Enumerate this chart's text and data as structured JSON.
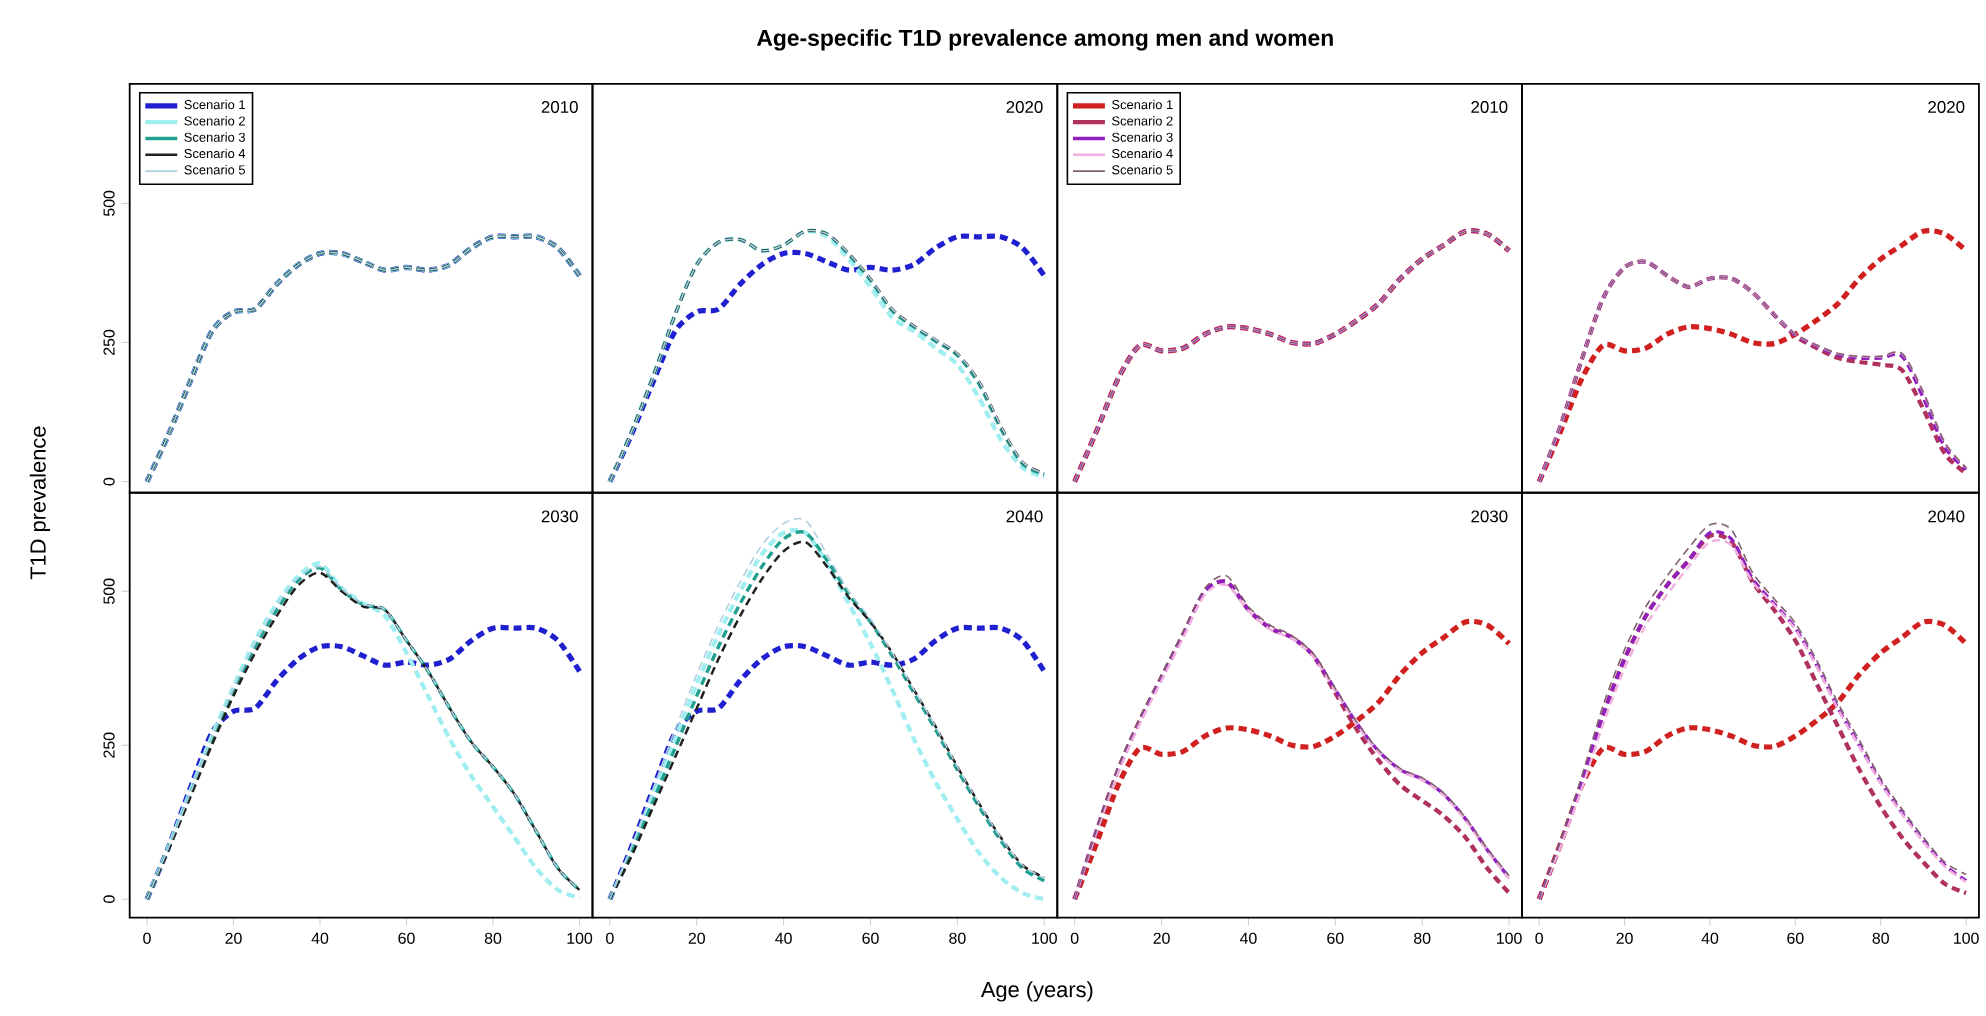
{
  "chart_data": [
    {
      "type": "line",
      "ylabel": "T1D prevalence",
      "annotations": [
        "2010"
      ],
      "legend": "top left",
      "line_style": "dashed",
      "tick_labels": "y",
      "x": [
        0,
        5,
        10,
        15,
        20,
        25,
        30,
        35,
        40,
        45,
        50,
        55,
        60,
        65,
        70,
        75,
        80,
        85,
        90,
        95,
        100
      ],
      "xlim": [
        -4,
        103
      ],
      "ylim": [
        -20,
        715
      ],
      "xticks": [
        0,
        20,
        40,
        60,
        80,
        100
      ],
      "yticks": [
        0,
        250,
        500
      ],
      "series": [
        {
          "name": "Scenario 1",
          "color": "#2020d0",
          "values": [
            0,
            85,
            180,
            270,
            305,
            310,
            355,
            390,
            410,
            410,
            395,
            380,
            385,
            380,
            390,
            420,
            440,
            440,
            440,
            420,
            370
          ]
        },
        {
          "name": "Scenario 2",
          "color": "#a0eef0",
          "values": [
            0,
            85,
            180,
            270,
            305,
            310,
            355,
            390,
            410,
            410,
            395,
            380,
            385,
            380,
            390,
            420,
            440,
            440,
            440,
            420,
            370
          ]
        },
        {
          "name": "Scenario 3",
          "color": "#20a090",
          "values": [
            0,
            85,
            180,
            270,
            305,
            310,
            355,
            390,
            410,
            410,
            395,
            380,
            385,
            380,
            390,
            420,
            440,
            440,
            440,
            420,
            370
          ]
        },
        {
          "name": "Scenario 4",
          "color": "#202020",
          "values": [
            0,
            85,
            180,
            270,
            305,
            310,
            355,
            390,
            410,
            410,
            395,
            380,
            385,
            380,
            390,
            420,
            440,
            440,
            440,
            420,
            370
          ]
        },
        {
          "name": "Scenario 5",
          "color": "#b0d0e0",
          "values": [
            0,
            85,
            180,
            270,
            305,
            310,
            355,
            390,
            410,
            410,
            395,
            380,
            385,
            380,
            390,
            420,
            440,
            440,
            440,
            420,
            370
          ]
        }
      ]
    },
    {
      "type": "line",
      "title": "Age-specific T1D prevalence among men and women",
      "annotations": [
        "2020"
      ],
      "line_style": "dashed",
      "tick_labels": false,
      "x": [
        0,
        5,
        10,
        15,
        20,
        25,
        30,
        35,
        40,
        45,
        50,
        55,
        60,
        65,
        70,
        75,
        80,
        85,
        90,
        95,
        100
      ],
      "xlim": [
        -4,
        103
      ],
      "ylim": [
        -20,
        715
      ],
      "xticks": [
        0,
        20,
        40,
        60,
        80,
        100
      ],
      "yticks": [
        0,
        250,
        500
      ],
      "series": [
        {
          "color": "#2020d0",
          "values": [
            0,
            85,
            180,
            270,
            305,
            310,
            355,
            390,
            410,
            410,
            395,
            380,
            385,
            380,
            390,
            420,
            440,
            440,
            440,
            420,
            370
          ]
        },
        {
          "color": "#a0eef0",
          "values": [
            0,
            90,
            190,
            300,
            390,
            430,
            435,
            415,
            425,
            450,
            440,
            400,
            350,
            295,
            270,
            240,
            210,
            150,
            75,
            25,
            8
          ]
        },
        {
          "color": "#20a090",
          "values": [
            0,
            90,
            190,
            300,
            390,
            430,
            435,
            415,
            425,
            450,
            445,
            408,
            362,
            307,
            278,
            252,
            227,
            175,
            95,
            32,
            13
          ]
        },
        {
          "color": "#202020",
          "values": [
            0,
            90,
            190,
            300,
            390,
            430,
            435,
            415,
            425,
            450,
            445,
            410,
            365,
            310,
            280,
            255,
            230,
            180,
            100,
            35,
            15
          ]
        },
        {
          "color": "#b0d0e0",
          "values": [
            0,
            90,
            190,
            300,
            390,
            430,
            435,
            415,
            425,
            450,
            445,
            410,
            365,
            310,
            280,
            255,
            230,
            180,
            100,
            35,
            15
          ]
        }
      ]
    },
    {
      "type": "line",
      "annotations": [
        "2010"
      ],
      "legend": "top left",
      "line_style": "dashed",
      "tick_labels": false,
      "x": [
        0,
        5,
        10,
        15,
        20,
        25,
        30,
        35,
        40,
        45,
        50,
        55,
        60,
        65,
        70,
        75,
        80,
        85,
        90,
        95,
        100
      ],
      "xlim": [
        -4,
        103
      ],
      "ylim": [
        -20,
        715
      ],
      "xticks": [
        0,
        20,
        40,
        60,
        80,
        100
      ],
      "yticks": [
        0,
        250,
        500
      ],
      "series": [
        {
          "name": "Scenario 1",
          "color": "#d02020",
          "values": [
            0,
            90,
            185,
            245,
            235,
            240,
            265,
            278,
            275,
            265,
            250,
            248,
            265,
            290,
            320,
            365,
            400,
            425,
            450,
            445,
            415
          ]
        },
        {
          "name": "Scenario 2",
          "color": "#b03060",
          "values": [
            0,
            90,
            185,
            245,
            235,
            240,
            265,
            278,
            275,
            265,
            250,
            248,
            265,
            290,
            320,
            365,
            400,
            425,
            450,
            445,
            415
          ]
        },
        {
          "name": "Scenario 3",
          "color": "#9020c0",
          "values": [
            0,
            90,
            185,
            245,
            235,
            240,
            265,
            278,
            275,
            265,
            250,
            248,
            265,
            290,
            320,
            365,
            400,
            425,
            450,
            445,
            415
          ]
        },
        {
          "name": "Scenario 4",
          "color": "#f0b0e0",
          "values": [
            0,
            90,
            185,
            245,
            235,
            240,
            265,
            278,
            275,
            265,
            250,
            248,
            265,
            290,
            320,
            365,
            400,
            425,
            450,
            445,
            415
          ]
        },
        {
          "name": "Scenario 5",
          "color": "#806070",
          "values": [
            0,
            90,
            185,
            245,
            235,
            240,
            265,
            278,
            275,
            265,
            250,
            248,
            265,
            290,
            320,
            365,
            400,
            425,
            450,
            445,
            415
          ]
        }
      ]
    },
    {
      "type": "line",
      "annotations": [
        "2020"
      ],
      "line_style": "dashed",
      "tick_labels": false,
      "x": [
        0,
        5,
        10,
        15,
        20,
        25,
        30,
        35,
        40,
        45,
        50,
        55,
        60,
        65,
        70,
        75,
        80,
        85,
        90,
        95,
        100
      ],
      "xlim": [
        -4,
        103
      ],
      "ylim": [
        -20,
        715
      ],
      "xticks": [
        0,
        20,
        40,
        60,
        80,
        100
      ],
      "yticks": [
        0,
        250,
        500
      ],
      "series": [
        {
          "color": "#d02020",
          "values": [
            0,
            90,
            185,
            245,
            235,
            240,
            265,
            278,
            275,
            265,
            250,
            248,
            265,
            290,
            320,
            365,
            400,
            425,
            450,
            445,
            415
          ]
        },
        {
          "color": "#b03060",
          "values": [
            0,
            100,
            220,
            330,
            385,
            395,
            370,
            350,
            365,
            365,
            340,
            300,
            262,
            240,
            222,
            215,
            210,
            200,
            130,
            50,
            15
          ]
        },
        {
          "color": "#9020c0",
          "values": [
            0,
            100,
            220,
            330,
            385,
            395,
            370,
            350,
            365,
            365,
            340,
            300,
            264,
            244,
            228,
            222,
            222,
            225,
            150,
            62,
            22
          ]
        },
        {
          "color": "#f0b0e0",
          "values": [
            0,
            100,
            220,
            330,
            385,
            395,
            370,
            350,
            365,
            365,
            340,
            300,
            265,
            245,
            230,
            225,
            225,
            230,
            160,
            70,
            25
          ]
        },
        {
          "color": "#806070",
          "values": [
            0,
            100,
            220,
            330,
            385,
            395,
            370,
            350,
            365,
            365,
            340,
            300,
            265,
            245,
            230,
            225,
            225,
            230,
            160,
            70,
            25
          ]
        }
      ]
    },
    {
      "type": "line",
      "annotations": [
        "2030"
      ],
      "line_style": "dashed",
      "x": [
        0,
        5,
        10,
        15,
        20,
        25,
        30,
        35,
        40,
        45,
        50,
        55,
        60,
        65,
        70,
        75,
        80,
        85,
        90,
        95,
        100
      ],
      "xlim": [
        -4,
        103
      ],
      "ylim": [
        -30,
        660
      ],
      "xticks": [
        0,
        20,
        40,
        60,
        80,
        100
      ],
      "yticks": [
        0,
        250,
        500
      ],
      "series": [
        {
          "color": "#2020d0",
          "values": [
            0,
            85,
            180,
            270,
            305,
            310,
            355,
            390,
            410,
            410,
            395,
            380,
            385,
            380,
            390,
            420,
            440,
            440,
            440,
            420,
            370
          ]
        },
        {
          "color": "#a0eef0",
          "values": [
            0,
            85,
            175,
            265,
            345,
            420,
            480,
            525,
            545,
            505,
            480,
            460,
            400,
            330,
            260,
            200,
            150,
            100,
            50,
            15,
            2
          ]
        },
        {
          "color": "#20a090",
          "values": [
            0,
            82,
            170,
            258,
            338,
            410,
            470,
            518,
            538,
            502,
            478,
            470,
            420,
            370,
            310,
            255,
            215,
            170,
            110,
            50,
            15
          ]
        },
        {
          "color": "#202020",
          "values": [
            0,
            80,
            165,
            250,
            330,
            400,
            460,
            510,
            530,
            500,
            475,
            470,
            420,
            370,
            310,
            255,
            215,
            170,
            110,
            50,
            15
          ]
        },
        {
          "color": "#b0d0e0",
          "values": [
            0,
            84,
            172,
            262,
            342,
            415,
            476,
            522,
            540,
            504,
            479,
            470,
            420,
            370,
            310,
            255,
            215,
            170,
            110,
            50,
            15
          ]
        }
      ]
    },
    {
      "type": "line",
      "xlabel": "Age (years)",
      "annotations": [
        "2040"
      ],
      "line_style": "dashed",
      "tick_labels": "x",
      "x": [
        0,
        5,
        10,
        15,
        20,
        25,
        30,
        35,
        40,
        45,
        50,
        55,
        60,
        65,
        70,
        75,
        80,
        85,
        90,
        95,
        100
      ],
      "xlim": [
        -4,
        103
      ],
      "ylim": [
        -30,
        660
      ],
      "xticks": [
        0,
        20,
        40,
        60,
        80,
        100
      ],
      "yticks": [
        0,
        250,
        500
      ],
      "series": [
        {
          "color": "#2020d0",
          "values": [
            0,
            85,
            180,
            270,
            305,
            310,
            355,
            390,
            410,
            410,
            395,
            380,
            385,
            380,
            390,
            420,
            440,
            440,
            440,
            420,
            370
          ]
        },
        {
          "color": "#a0eef0",
          "values": [
            0,
            80,
            170,
            260,
            350,
            430,
            500,
            560,
            595,
            595,
            545,
            480,
            415,
            340,
            260,
            190,
            130,
            75,
            35,
            10,
            0
          ]
        },
        {
          "color": "#20a090",
          "values": [
            0,
            75,
            160,
            245,
            330,
            410,
            480,
            540,
            585,
            595,
            550,
            495,
            450,
            395,
            335,
            275,
            210,
            150,
            95,
            50,
            30
          ]
        },
        {
          "color": "#202020",
          "values": [
            0,
            70,
            150,
            230,
            310,
            390,
            460,
            520,
            565,
            580,
            540,
            490,
            450,
            400,
            340,
            280,
            215,
            155,
            100,
            55,
            35
          ]
        },
        {
          "color": "#b0d0e0",
          "values": [
            0,
            85,
            180,
            275,
            365,
            445,
            515,
            575,
            610,
            615,
            560,
            500,
            455,
            400,
            340,
            280,
            215,
            155,
            100,
            55,
            35
          ]
        }
      ]
    },
    {
      "type": "line",
      "annotations": [
        "2030"
      ],
      "line_style": "dashed",
      "tick_labels": "x",
      "x": [
        0,
        5,
        10,
        15,
        20,
        25,
        30,
        35,
        40,
        45,
        50,
        55,
        60,
        65,
        70,
        75,
        80,
        85,
        90,
        95,
        100
      ],
      "xlim": [
        -4,
        103
      ],
      "ylim": [
        -30,
        660
      ],
      "xticks": [
        0,
        20,
        40,
        60,
        80,
        100
      ],
      "yticks": [
        0,
        250,
        500
      ],
      "series": [
        {
          "color": "#d02020",
          "values": [
            0,
            90,
            185,
            245,
            235,
            240,
            265,
            278,
            275,
            265,
            250,
            248,
            265,
            290,
            320,
            365,
            400,
            425,
            450,
            445,
            415
          ]
        },
        {
          "color": "#b03060",
          "values": [
            0,
            110,
            210,
            290,
            360,
            430,
            500,
            515,
            470,
            440,
            425,
            395,
            335,
            275,
            225,
            185,
            160,
            135,
            100,
            50,
            10
          ]
        },
        {
          "color": "#9020c0",
          "values": [
            0,
            110,
            210,
            290,
            360,
            430,
            500,
            515,
            470,
            440,
            425,
            395,
            340,
            285,
            240,
            210,
            195,
            170,
            130,
            80,
            35
          ]
        },
        {
          "color": "#f0b0e0",
          "values": [
            0,
            108,
            205,
            285,
            355,
            425,
            495,
            510,
            468,
            438,
            423,
            393,
            338,
            283,
            238,
            208,
            193,
            168,
            128,
            78,
            33
          ]
        },
        {
          "color": "#806070",
          "values": [
            0,
            112,
            215,
            295,
            365,
            435,
            505,
            525,
            475,
            445,
            428,
            398,
            342,
            287,
            242,
            212,
            197,
            172,
            132,
            82,
            38
          ]
        }
      ]
    },
    {
      "type": "line",
      "annotations": [
        "2040"
      ],
      "line_style": "dashed",
      "tick_labels": "x",
      "x": [
        0,
        5,
        10,
        15,
        20,
        25,
        30,
        35,
        40,
        45,
        50,
        55,
        60,
        65,
        70,
        75,
        80,
        85,
        90,
        95,
        100
      ],
      "xlim": [
        -4,
        103
      ],
      "ylim": [
        -30,
        660
      ],
      "xticks": [
        0,
        20,
        40,
        60,
        80,
        100
      ],
      "yticks": [
        0,
        250,
        500
      ],
      "series": [
        {
          "color": "#d02020",
          "values": [
            0,
            90,
            185,
            245,
            235,
            240,
            265,
            278,
            275,
            265,
            250,
            248,
            265,
            290,
            320,
            365,
            400,
            425,
            450,
            445,
            415
          ]
        },
        {
          "color": "#b03060",
          "values": [
            0,
            90,
            190,
            300,
            390,
            460,
            510,
            550,
            590,
            580,
            515,
            470,
            420,
            350,
            280,
            210,
            150,
            100,
            60,
            25,
            10
          ]
        },
        {
          "color": "#9020c0",
          "values": [
            0,
            90,
            190,
            300,
            390,
            460,
            510,
            550,
            595,
            585,
            520,
            480,
            440,
            380,
            310,
            250,
            190,
            140,
            95,
            55,
            30
          ]
        },
        {
          "color": "#f0b0e0",
          "values": [
            0,
            85,
            180,
            285,
            375,
            445,
            495,
            540,
            580,
            575,
            515,
            478,
            438,
            378,
            308,
            248,
            188,
            138,
            93,
            53,
            28
          ]
        },
        {
          "color": "#806070",
          "values": [
            0,
            95,
            200,
            315,
            405,
            475,
            525,
            570,
            608,
            600,
            530,
            488,
            448,
            388,
            318,
            258,
            196,
            146,
            100,
            60,
            40
          ]
        }
      ]
    }
  ]
}
